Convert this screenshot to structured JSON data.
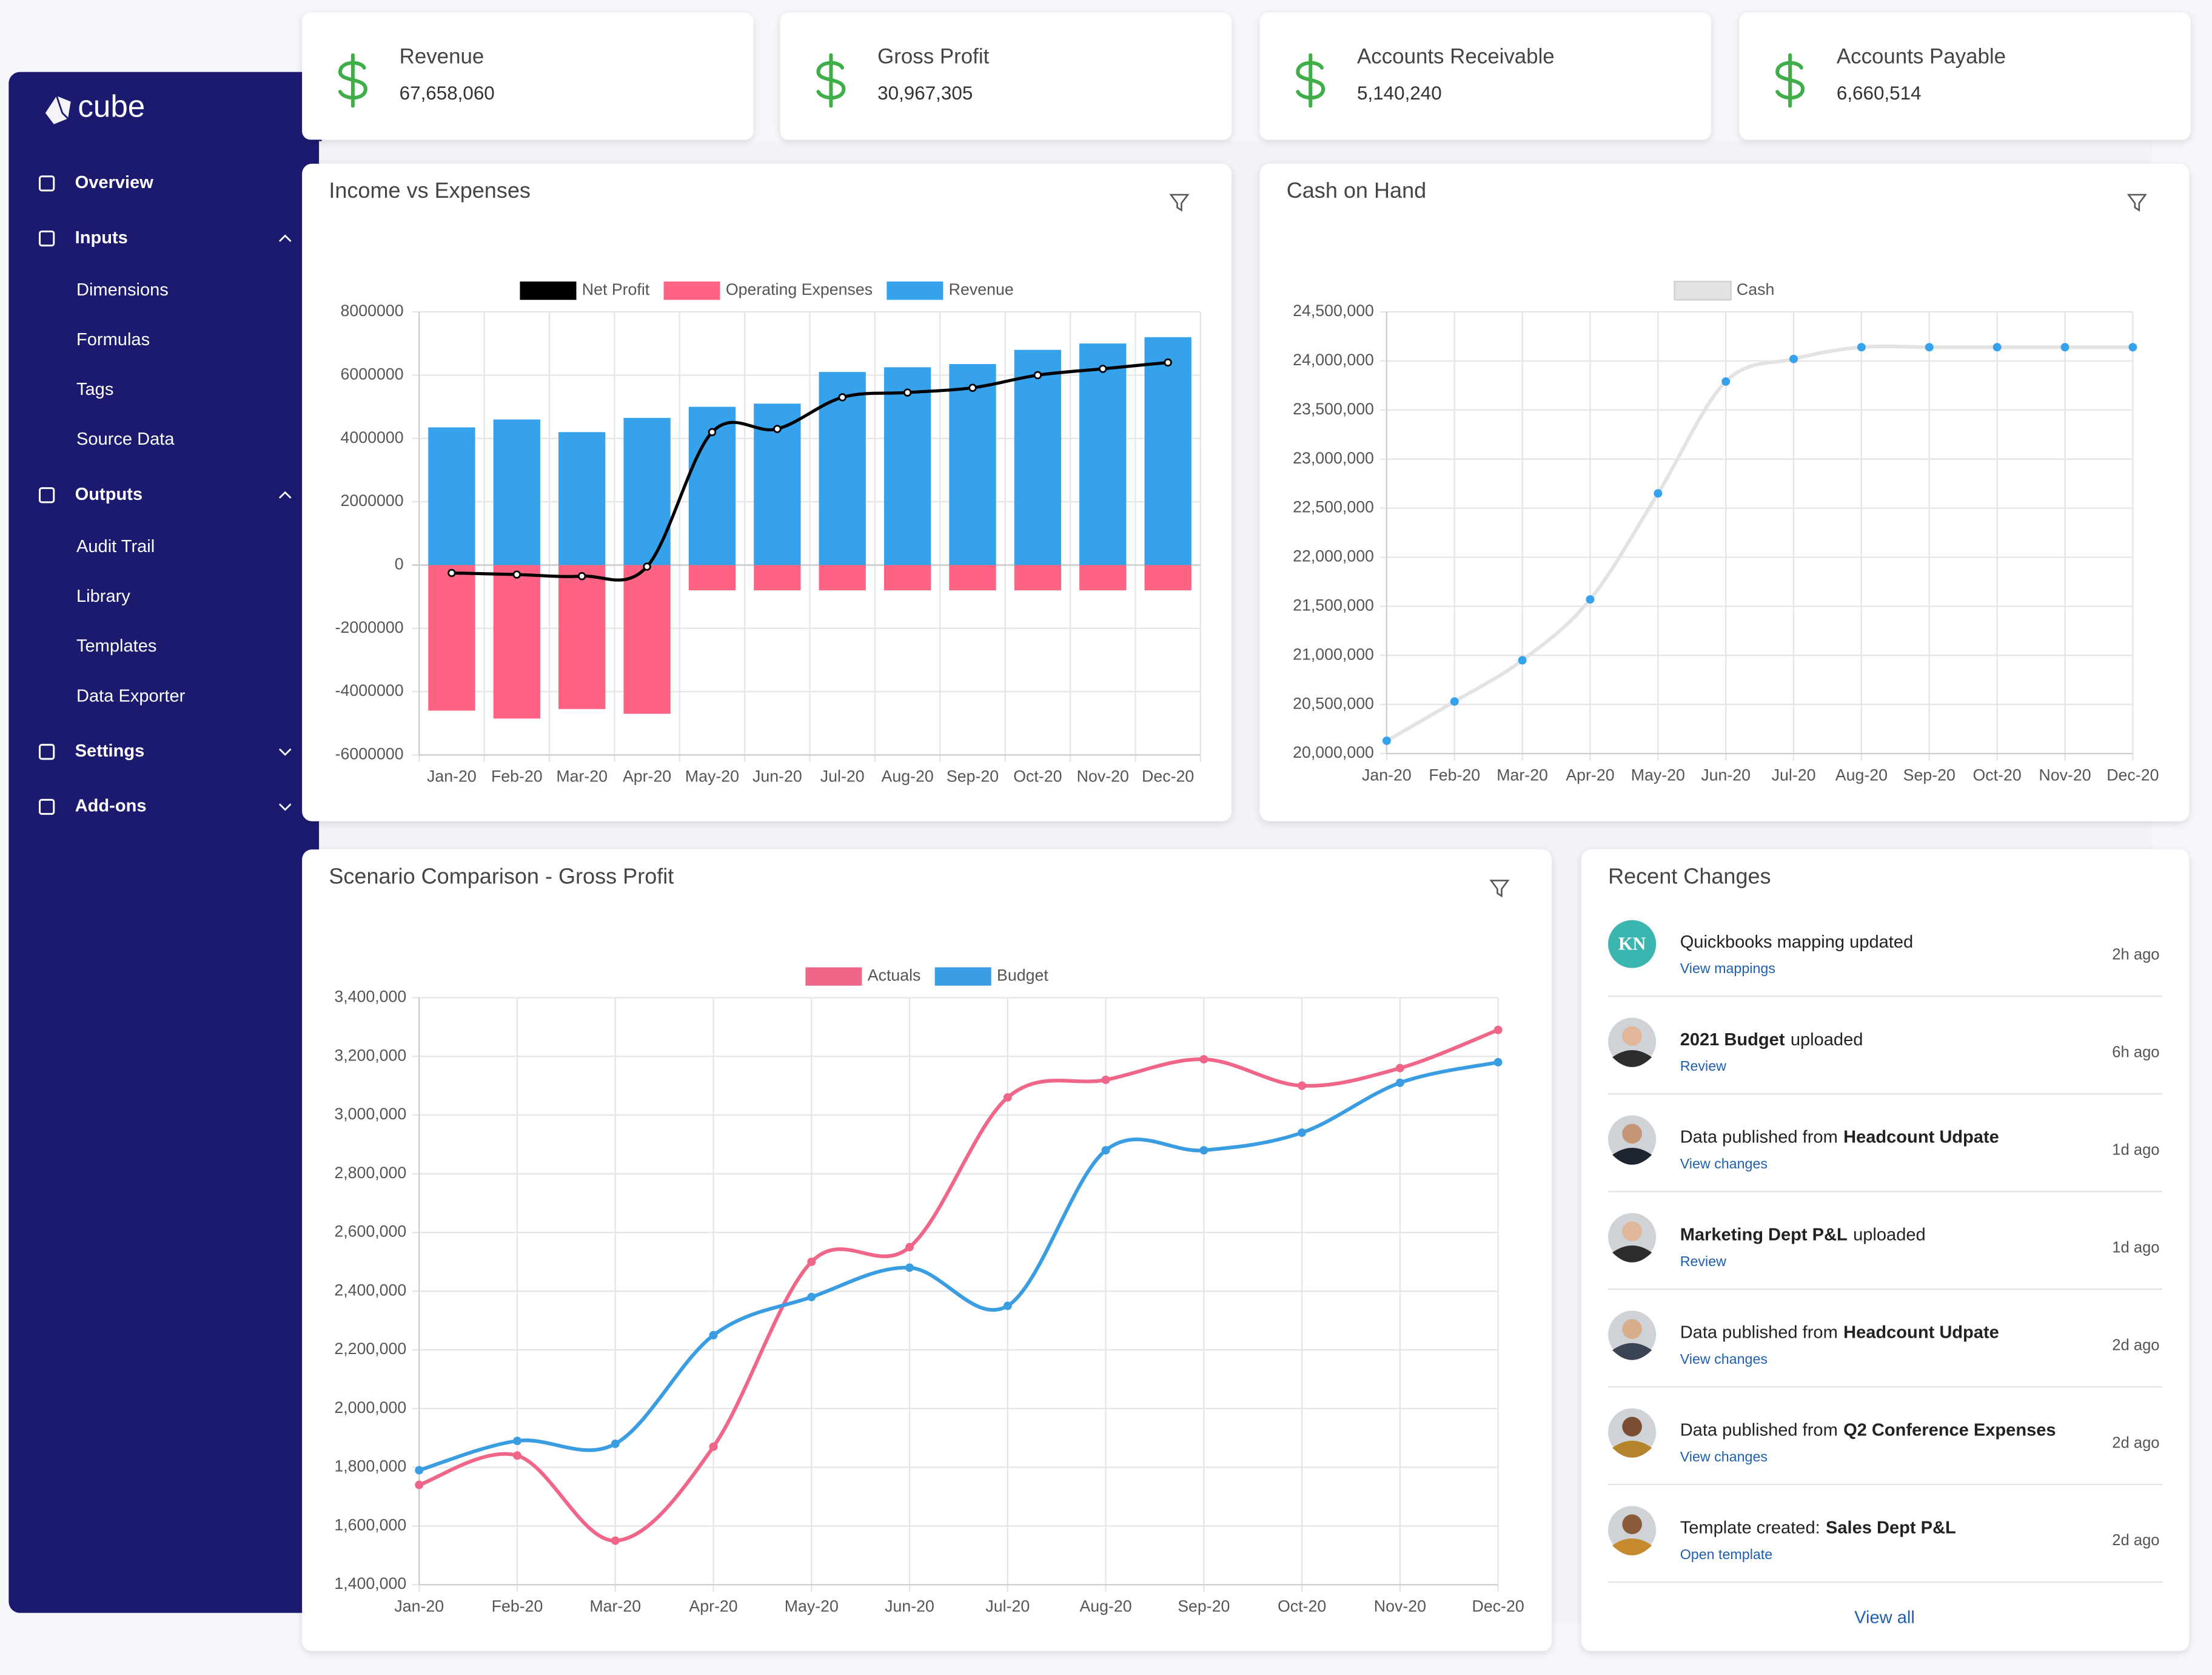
{
  "sidebar": {
    "logo": "cube",
    "items": [
      {
        "label": "Overview"
      },
      {
        "label": "Inputs",
        "expanded": true,
        "children": [
          "Dimensions",
          "Formulas",
          "Tags",
          "Source Data"
        ]
      },
      {
        "label": "Outputs",
        "expanded": true,
        "children": [
          "Audit Trail",
          "Library",
          "Templates",
          "Data Exporter"
        ]
      },
      {
        "label": "Settings",
        "expanded": false
      },
      {
        "label": "Add-ons",
        "expanded": false
      }
    ]
  },
  "kpis": [
    {
      "label": "Revenue",
      "value": "67,658,060"
    },
    {
      "label": "Gross Profit",
      "value": "30,967,305"
    },
    {
      "label": "Accounts Receivable",
      "value": "5,140,240"
    },
    {
      "label": "Accounts Payable",
      "value": "6,660,514"
    }
  ],
  "chart_data": [
    {
      "type": "bar",
      "title": "Income vs Expenses",
      "categories": [
        "Jan-20",
        "Feb-20",
        "Mar-20",
        "Apr-20",
        "May-20",
        "Jun-20",
        "Jul-20",
        "Aug-20",
        "Sep-20",
        "Oct-20",
        "Nov-20",
        "Dec-20"
      ],
      "series": [
        {
          "name": "Net Profit",
          "type": "line",
          "color": "#000000",
          "values": [
            -250000,
            -300000,
            -350000,
            -50000,
            4200000,
            4300000,
            5300000,
            5450000,
            5600000,
            6000000,
            6200000,
            6400000
          ]
        },
        {
          "name": "Operating Expenses",
          "color": "#ff6384",
          "values": [
            -4600000,
            -4850000,
            -4550000,
            -4700000,
            -800000,
            -800000,
            -800000,
            -800000,
            -800000,
            -800000,
            -800000,
            -800000
          ]
        },
        {
          "name": "Revenue",
          "color": "#36a2eb",
          "values": [
            4350000,
            4600000,
            4200000,
            4650000,
            5000000,
            5100000,
            6100000,
            6250000,
            6350000,
            6800000,
            7000000,
            7200000
          ]
        }
      ],
      "ylim": [
        -6000000,
        8000000
      ],
      "yticks": [
        -6000000,
        -4000000,
        -2000000,
        0,
        2000000,
        4000000,
        6000000,
        8000000
      ],
      "grid": true
    },
    {
      "type": "line",
      "title": "Cash on Hand",
      "categories": [
        "Jan-20",
        "Feb-20",
        "Mar-20",
        "Apr-20",
        "May-20",
        "Jun-20",
        "Jul-20",
        "Aug-20",
        "Sep-20",
        "Oct-20",
        "Nov-20",
        "Dec-20"
      ],
      "series": [
        {
          "name": "Cash",
          "color": "#e3e3e3",
          "point_color": "#36a2eb",
          "values": [
            20130000,
            20530000,
            20950000,
            21570000,
            22650000,
            23790000,
            24020000,
            24140000,
            24140000,
            24140000,
            24140000,
            24140000
          ]
        }
      ],
      "ylim": [
        20000000,
        24500000
      ],
      "yticks": [
        {
          "value": 20000000,
          "label": "20,000,000"
        },
        {
          "value": 20500000,
          "label": "20,500,000"
        },
        {
          "value": 21000000,
          "label": "21,000,000"
        },
        {
          "value": 21500000,
          "label": "21,500,000"
        },
        {
          "value": 22000000,
          "label": "22,000,000"
        },
        {
          "value": 22500000,
          "label": "22,500,000"
        },
        {
          "value": 23000000,
          "label": "23,000,000"
        },
        {
          "value": 23500000,
          "label": "23,500,000"
        },
        {
          "value": 24000000,
          "label": "24,000,000"
        },
        {
          "value": 24500000,
          "label": "24,500,000"
        }
      ],
      "grid": true
    },
    {
      "type": "line",
      "title": "Scenario Comparison - Gross Profit",
      "categories": [
        "Jan-20",
        "Feb-20",
        "Mar-20",
        "Apr-20",
        "May-20",
        "Jun-20",
        "Jul-20",
        "Aug-20",
        "Sep-20",
        "Oct-20",
        "Nov-20",
        "Dec-20"
      ],
      "series": [
        {
          "name": "Actuals",
          "color": "#f06689",
          "values": [
            1740000,
            1840000,
            1550000,
            1870000,
            2500000,
            2550000,
            3060000,
            3120000,
            3190000,
            3100000,
            3160000,
            3290000
          ]
        },
        {
          "name": "Budget",
          "color": "#3a9de2",
          "values": [
            1790000,
            1890000,
            1880000,
            2250000,
            2380000,
            2480000,
            2350000,
            2880000,
            2880000,
            2940000,
            3110000,
            3180000
          ]
        }
      ],
      "ylim": [
        1400000,
        3400000
      ],
      "yticks": [
        {
          "value": 1400000,
          "label": "1,400,000"
        },
        {
          "value": 1600000,
          "label": "1,600,000"
        },
        {
          "value": 1800000,
          "label": "1,800,000"
        },
        {
          "value": 2000000,
          "label": "2,000,000"
        },
        {
          "value": 2200000,
          "label": "2,200,000"
        },
        {
          "value": 2400000,
          "label": "2,400,000"
        },
        {
          "value": 2600000,
          "label": "2,600,000"
        },
        {
          "value": 2800000,
          "label": "2,800,000"
        },
        {
          "value": 3000000,
          "label": "3,000,000"
        },
        {
          "value": 3200000,
          "label": "3,200,000"
        },
        {
          "value": 3400000,
          "label": "3,400,000"
        }
      ],
      "grid": true
    }
  ],
  "recent_changes": {
    "title": "Recent Changes",
    "items": [
      {
        "avatar": "KN",
        "parts": [
          {
            "text": "Quickbooks mapping updated",
            "bold": false
          }
        ],
        "link": "View mappings",
        "time": "2h ago"
      },
      {
        "parts": [
          {
            "text": "2021 Budget",
            "bold": true
          },
          {
            "text": "uploaded",
            "bold": false
          }
        ],
        "link": "Review",
        "time": "6h ago"
      },
      {
        "parts": [
          {
            "text": "Data published from",
            "bold": false
          },
          {
            "text": "Headcount Udpate",
            "bold": true
          }
        ],
        "link": "View changes",
        "time": "1d ago"
      },
      {
        "parts": [
          {
            "text": "Marketing Dept P&L",
            "bold": true
          },
          {
            "text": "uploaded",
            "bold": false
          }
        ],
        "link": "Review",
        "time": "1d ago"
      },
      {
        "parts": [
          {
            "text": "Data published from",
            "bold": false
          },
          {
            "text": "Headcount Udpate",
            "bold": true
          }
        ],
        "link": "View changes",
        "time": "2d ago"
      },
      {
        "parts": [
          {
            "text": "Data published from",
            "bold": false
          },
          {
            "text": "Q2 Conference Expenses",
            "bold": true
          }
        ],
        "link": "View changes",
        "time": "2d ago"
      },
      {
        "parts": [
          {
            "text": "Template created:",
            "bold": false
          },
          {
            "text": "Sales Dept P&L",
            "bold": true
          }
        ],
        "link": "Open template",
        "time": "2d ago"
      }
    ],
    "footer_link": "View all"
  }
}
